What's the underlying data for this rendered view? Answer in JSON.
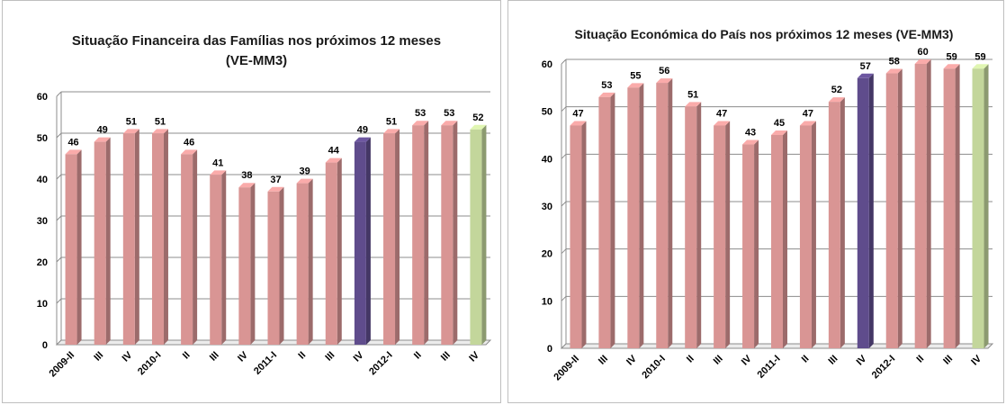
{
  "colors": {
    "bar_default": "#d99594",
    "bar_highlight": "#5f4c8c",
    "bar_latest": "#c3d69b",
    "grid": "#8c8c8c",
    "title": "#1a1a1a"
  },
  "chart_data": [
    {
      "type": "bar",
      "title": "Situação Financeira das Famílias nos  próximos 12 meses",
      "subtitle": "(VE-MM3)",
      "categories": [
        "2009-II",
        "III",
        "IV",
        "2010-I",
        "II",
        "III",
        "IV",
        "2011-I",
        "II",
        "III",
        "IV",
        "2012-I",
        "II",
        "III",
        "IV"
      ],
      "values": [
        46,
        49,
        51,
        51,
        46,
        41,
        38,
        37,
        39,
        44,
        49,
        51,
        53,
        53,
        52
      ],
      "bar_colors": [
        "default",
        "default",
        "default",
        "default",
        "default",
        "default",
        "default",
        "default",
        "default",
        "default",
        "highlight",
        "default",
        "default",
        "default",
        "latest"
      ],
      "ylim": [
        0,
        60
      ],
      "yticks": [
        0,
        10,
        20,
        30,
        40,
        50,
        60
      ],
      "grid": true,
      "xlabel": "",
      "ylabel": ""
    },
    {
      "type": "bar",
      "title": "Situação Económica  do País nos  próximos 12 meses (VE-MM3)",
      "subtitle": "",
      "categories": [
        "2009-II",
        "III",
        "IV",
        "2010-I",
        "II",
        "III",
        "IV",
        "2011-I",
        "II",
        "III",
        "IV",
        "2012-I",
        "II",
        "III",
        "IV"
      ],
      "values": [
        47,
        53,
        55,
        56,
        51,
        47,
        43,
        45,
        47,
        52,
        57,
        58,
        60,
        59,
        59
      ],
      "bar_colors": [
        "default",
        "default",
        "default",
        "default",
        "default",
        "default",
        "default",
        "default",
        "default",
        "default",
        "highlight",
        "default",
        "default",
        "default",
        "latest"
      ],
      "ylim": [
        0,
        60
      ],
      "yticks": [
        0,
        10,
        20,
        30,
        40,
        50,
        60
      ],
      "grid": true,
      "xlabel": "",
      "ylabel": ""
    }
  ]
}
